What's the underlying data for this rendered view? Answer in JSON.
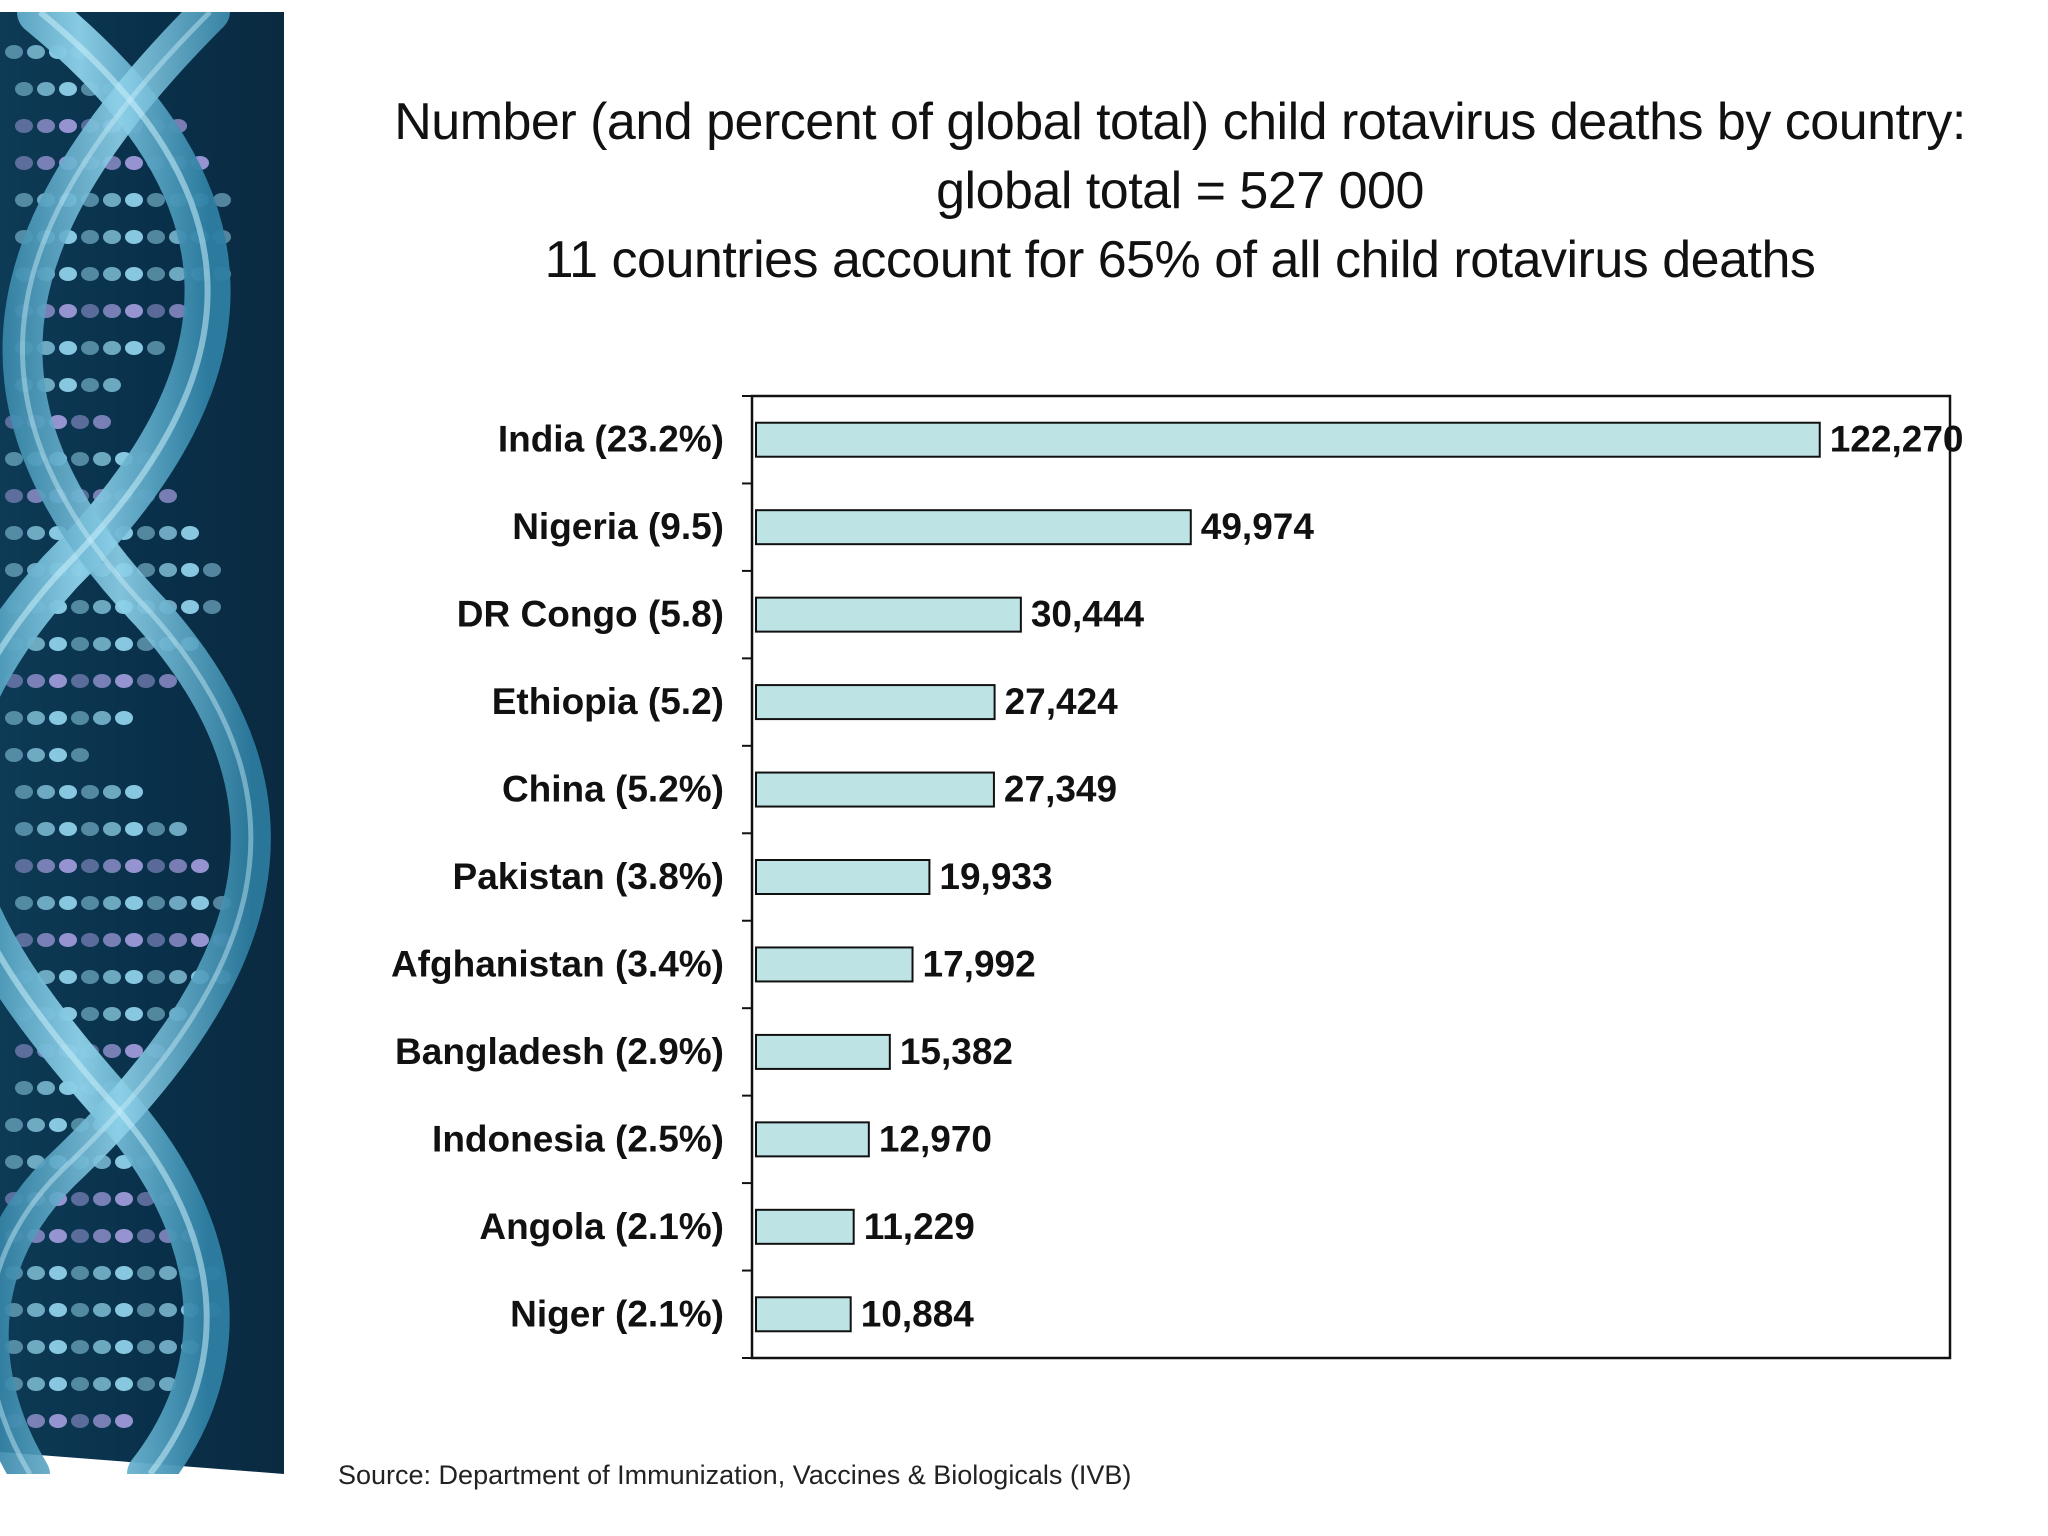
{
  "slide": {
    "title_line1": "Number (and percent of global total) child rotavirus deaths by country:",
    "title_line2": "global total = 527 000",
    "title_line3": "11 countries account for 65% of all child rotavirus deaths",
    "source": "Source: Department of Immunization, Vaccines & Biologicals (IVB)"
  },
  "colors": {
    "bar_fill": "#bde3e4",
    "bar_stroke": "#111111",
    "dna_dark": "#0a2e45",
    "dna_strand": "#5fb6d4",
    "dna_bead": "#8fd0e8",
    "dna_bead_violet": "#9d9ad8"
  },
  "chart_data": {
    "type": "bar",
    "orientation": "horizontal",
    "categories": [
      "India (23.2%)",
      "Nigeria (9.5)",
      "DR Congo (5.8)",
      "Ethiopia (5.2)",
      "China (5.2%)",
      "Pakistan (3.8%)",
      "Afghanistan (3.4%)",
      "Bangladesh (2.9%)",
      "Indonesia (2.5%)",
      "Angola (2.1%)",
      "Niger (2.1%)"
    ],
    "values": [
      122270,
      49974,
      30444,
      27424,
      27349,
      19933,
      17992,
      15382,
      12970,
      11229,
      10884
    ],
    "value_labels": [
      "122,270",
      "49,974",
      "30,444",
      "27,424",
      "27,349",
      "19,933",
      "17,992",
      "15,382",
      "12,970",
      "11,229",
      "10,884"
    ],
    "xlim": [
      0,
      140000
    ],
    "grid": false,
    "legend": "none"
  }
}
